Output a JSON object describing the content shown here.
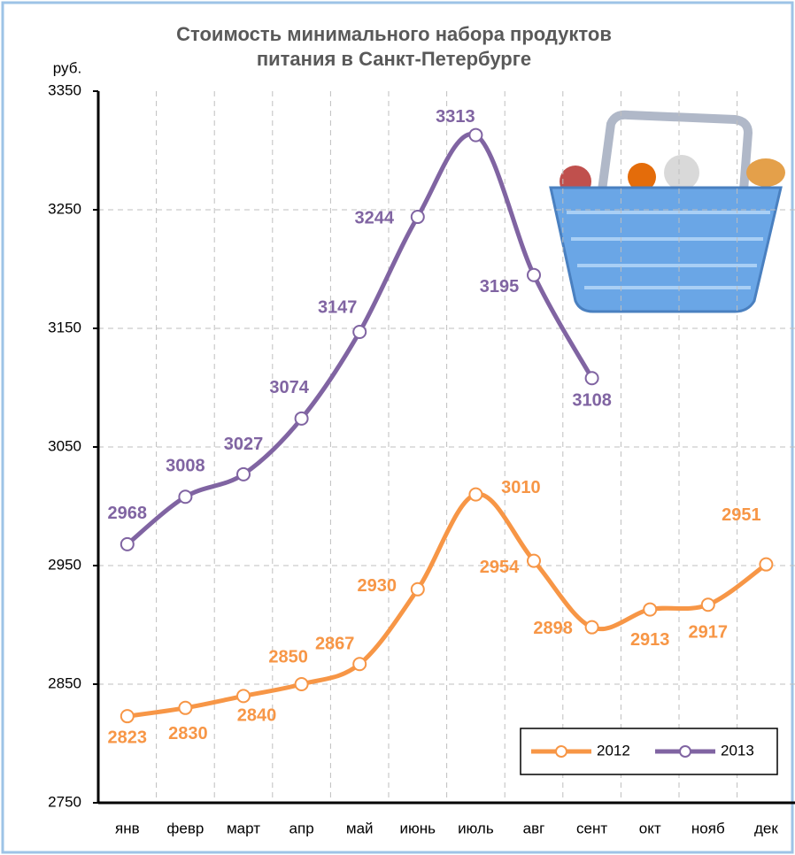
{
  "chart_data": {
    "type": "line",
    "title": [
      "Стоимость минимального набора продуктов",
      "питания в Санкт-Петербурге"
    ],
    "y_label": "руб.",
    "categories": [
      "янв",
      "февр",
      "март",
      "апр",
      "май",
      "июнь",
      "июль",
      "авг",
      "сент",
      "окт",
      "нояб",
      "дек"
    ],
    "series": [
      {
        "name": "2012",
        "color": "#f79646",
        "values": [
          2823,
          2830,
          2840,
          2850,
          2867,
          2930,
          3010,
          2954,
          2898,
          2913,
          2917,
          2951
        ]
      },
      {
        "name": "2013",
        "color": "#8064a2",
        "values": [
          2968,
          3008,
          3027,
          3074,
          3147,
          3244,
          3313,
          3195,
          3108,
          null,
          null,
          null
        ]
      }
    ],
    "ylim": [
      2750,
      3350
    ],
    "yticks": [
      2750,
      2850,
      2950,
      3050,
      3150,
      3250,
      3350
    ],
    "grid": true,
    "legend": "lower right"
  }
}
